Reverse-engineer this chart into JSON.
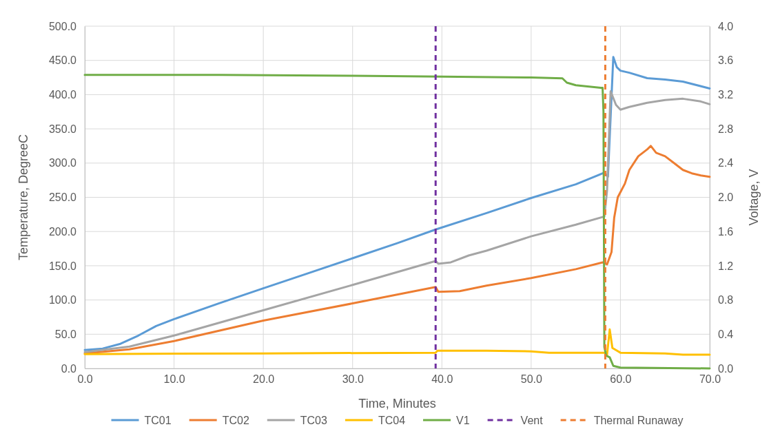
{
  "chart_data": {
    "type": "line",
    "xlabel": "Time, Minutes",
    "ylabel": "Temperature, DegreeC",
    "y2label": "Voltage, V",
    "xlim": [
      0,
      70
    ],
    "xticks": [
      {
        "value": 0,
        "label": "0.0"
      },
      {
        "value": 10,
        "label": "10.0"
      },
      {
        "value": 20,
        "label": "20.0"
      },
      {
        "value": 30,
        "label": "30.0"
      },
      {
        "value": 40,
        "label": "40.0"
      },
      {
        "value": 50,
        "label": "50.0"
      },
      {
        "value": 60,
        "label": "60.0"
      },
      {
        "value": 70,
        "label": "70.0"
      }
    ],
    "ylim": [
      0,
      500
    ],
    "yticks": [
      {
        "value": 0,
        "label": "0.0"
      },
      {
        "value": 50,
        "label": "50.0"
      },
      {
        "value": 100,
        "label": "100.0"
      },
      {
        "value": 150,
        "label": "150.0"
      },
      {
        "value": 200,
        "label": "200.0"
      },
      {
        "value": 250,
        "label": "250.0"
      },
      {
        "value": 300,
        "label": "300.0"
      },
      {
        "value": 350,
        "label": "350.0"
      },
      {
        "value": 400,
        "label": "400.0"
      },
      {
        "value": 450,
        "label": "450.0"
      },
      {
        "value": 500,
        "label": "500.0"
      }
    ],
    "y2lim": [
      0,
      4
    ],
    "y2ticks": [
      {
        "value": 0,
        "label": "0.0"
      },
      {
        "value": 0.4,
        "label": "0.4"
      },
      {
        "value": 0.8,
        "label": "0.8"
      },
      {
        "value": 1.2,
        "label": "1.2"
      },
      {
        "value": 1.6,
        "label": "1.6"
      },
      {
        "value": 2,
        "label": "2.0"
      },
      {
        "value": 2.4,
        "label": "2.4"
      },
      {
        "value": 2.8,
        "label": "2.8"
      },
      {
        "value": 3.2,
        "label": "3.2"
      },
      {
        "value": 3.6,
        "label": "3.6"
      },
      {
        "value": 4,
        "label": "4.0"
      }
    ],
    "grid": true,
    "legend": "bottom",
    "line_style": "solid",
    "marker": "none",
    "series": [
      {
        "name": "TC01",
        "color": "#5b9bd5",
        "x": [
          0,
          2,
          4,
          6,
          8,
          10,
          15,
          20,
          25,
          30,
          35,
          39.3,
          45,
          50,
          55,
          58.2,
          58.6,
          59.2,
          59.6,
          60,
          61,
          63,
          65,
          67,
          70
        ],
        "values": [
          27,
          29,
          36,
          48,
          62,
          72,
          95,
          117,
          139,
          161,
          183,
          203,
          227,
          249,
          269,
          286,
          280,
          455,
          440,
          435,
          432,
          424,
          422,
          419,
          409
        ]
      },
      {
        "name": "TC02",
        "color": "#ed7d31",
        "x": [
          0,
          5,
          10,
          20,
          30,
          39.3,
          39.6,
          42,
          45,
          50,
          55,
          58.0,
          58.5,
          59.0,
          59.3,
          59.7,
          60.5,
          61,
          62,
          63,
          63.4,
          64,
          65,
          66,
          67,
          68,
          69,
          70
        ],
        "values": [
          22,
          28,
          40,
          70,
          95,
          119,
          112,
          113,
          121,
          132,
          145,
          155,
          152,
          170,
          220,
          250,
          270,
          290,
          310,
          320,
          325,
          315,
          310,
          300,
          290,
          285,
          282,
          280
        ]
      },
      {
        "name": "TC03",
        "color": "#a5a5a5",
        "x": [
          0,
          5,
          10,
          20,
          30,
          39.3,
          39.6,
          41,
          43,
          45,
          50,
          55,
          58.2,
          58.5,
          58.9,
          59.5,
          60,
          61,
          63,
          65,
          67,
          69,
          70
        ],
        "values": [
          24,
          32,
          48,
          85,
          122,
          157,
          153,
          155,
          165,
          172,
          193,
          210,
          222,
          260,
          405,
          385,
          378,
          382,
          388,
          392,
          394,
          390,
          386
        ]
      },
      {
        "name": "TC04",
        "color": "#ffc000",
        "x": [
          0,
          20,
          39.3,
          39.5,
          45,
          50,
          52,
          58.2,
          58.5,
          58.8,
          59.1,
          60,
          65,
          67,
          70
        ],
        "values": [
          21,
          22,
          23,
          26,
          26,
          25,
          23,
          23,
          20,
          57,
          30,
          23,
          22,
          20,
          20
        ]
      },
      {
        "name": "V1",
        "color": "#70ad47",
        "axis": "y2",
        "x": [
          0,
          15,
          30,
          40,
          50,
          53.5,
          54,
          55,
          57.8,
          58.0,
          58.1,
          58.2,
          58.4,
          58.8,
          59.2,
          60,
          70
        ],
        "values": [
          3.43,
          3.43,
          3.42,
          3.41,
          3.4,
          3.39,
          3.34,
          3.31,
          3.28,
          3.28,
          3.0,
          0.25,
          0.15,
          0.13,
          0.03,
          0.01,
          0.0
        ]
      }
    ],
    "ref_lines": [
      {
        "axis": "x",
        "value": 39.3,
        "label": "Vent",
        "color": "#7030a0",
        "line_style": "dashed"
      },
      {
        "axis": "x",
        "value": 58.3,
        "label": "Thermal Runaway",
        "color": "#ed7d31",
        "line_style": "dashed"
      }
    ]
  }
}
